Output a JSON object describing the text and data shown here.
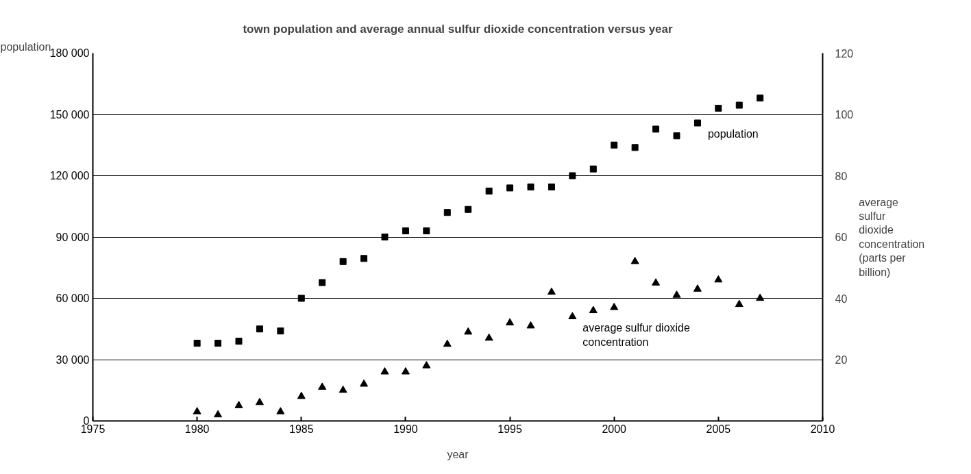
{
  "chart_data": {
    "type": "scatter",
    "title": "town population and average annual sulfur dioxide concentration versus year",
    "xlabel": "year",
    "ylabel": "population",
    "y2label": "average sulfur dioxide concentration (parts per billion)",
    "x": [
      1980,
      1981,
      1982,
      1983,
      1984,
      1985,
      1986,
      1987,
      1988,
      1989,
      1990,
      1991,
      1992,
      1993,
      1994,
      1995,
      1996,
      1997,
      1998,
      1999,
      2000,
      2001,
      2002,
      2003,
      2004,
      2005,
      2006,
      2007
    ],
    "series": [
      {
        "name": "population",
        "color": "#000000",
        "marker": "square",
        "values": [
          38000,
          38000,
          39000,
          45000,
          44000,
          60000,
          67700,
          78000,
          79500,
          90000,
          93000,
          93000,
          102000,
          103500,
          112500,
          114000,
          114500,
          114500,
          120000,
          123300,
          135000,
          133800,
          142800,
          139500,
          145800,
          153000,
          154500,
          158000
        ]
      },
      {
        "name": "average sulfur dioxide concentration",
        "color": "#000000",
        "marker": "triangle",
        "axis": "y2",
        "values": [
          3,
          2,
          5,
          6,
          3,
          8,
          11,
          10,
          12,
          16,
          16,
          18,
          25,
          29,
          27,
          32,
          31,
          42,
          34,
          36,
          37,
          52,
          45,
          41,
          43,
          46,
          38,
          40
        ]
      }
    ],
    "xlim": [
      1975,
      2010
    ],
    "xticks": [
      1975,
      1980,
      1985,
      1990,
      1995,
      2000,
      2005,
      2010
    ],
    "ylim": [
      0,
      180000
    ],
    "yticks": [
      0,
      {
        "value": 30000,
        "label": "30 000"
      },
      {
        "value": 60000,
        "label": "60 000"
      },
      {
        "value": 90000,
        "label": "90 000"
      },
      {
        "value": 120000,
        "label": "120 000"
      },
      {
        "value": 150000,
        "label": "150 000"
      },
      {
        "value": 180000,
        "label": "180 000"
      }
    ],
    "y2lim": [
      0,
      120
    ],
    "y2ticks": [
      20,
      40,
      60,
      80,
      100,
      120
    ],
    "grid": "y"
  }
}
